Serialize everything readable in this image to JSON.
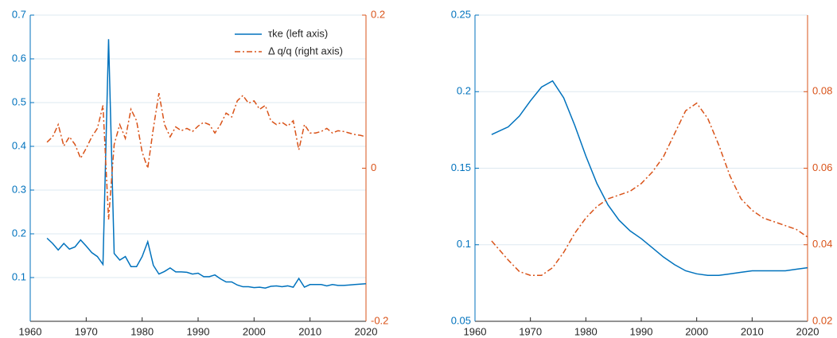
{
  "chart_data": [
    {
      "type": "line",
      "x": [
        1963,
        1964,
        1965,
        1966,
        1967,
        1968,
        1969,
        1970,
        1971,
        1972,
        1973,
        1974,
        1975,
        1976,
        1977,
        1978,
        1979,
        1980,
        1981,
        1982,
        1983,
        1984,
        1985,
        1986,
        1987,
        1988,
        1989,
        1990,
        1991,
        1992,
        1993,
        1994,
        1995,
        1996,
        1997,
        1998,
        1999,
        2000,
        2001,
        2002,
        2003,
        2004,
        2005,
        2006,
        2007,
        2008,
        2009,
        2010,
        2011,
        2012,
        2013,
        2014,
        2015,
        2016,
        2017,
        2018,
        2019,
        2020
      ],
      "series": [
        {
          "name": "τke (left axis)",
          "color": "#0072BD",
          "dash": "solid",
          "values": [
            0.19,
            0.178,
            0.163,
            0.178,
            0.165,
            0.17,
            0.186,
            0.172,
            0.157,
            0.148,
            0.13,
            0.645,
            0.155,
            0.14,
            0.148,
            0.125,
            0.125,
            0.148,
            0.182,
            0.128,
            0.108,
            0.114,
            0.122,
            0.113,
            0.113,
            0.112,
            0.108,
            0.11,
            0.102,
            0.102,
            0.106,
            0.097,
            0.09,
            0.09,
            0.083,
            0.079,
            0.079,
            0.077,
            0.078,
            0.076,
            0.08,
            0.081,
            0.079,
            0.081,
            0.078,
            0.098,
            0.078,
            0.084,
            0.084,
            0.084,
            0.081,
            0.084,
            0.082,
            0.082,
            0.083,
            0.084,
            0.085,
            0.086
          ]
        },
        {
          "name": "Δ q/q (right axis)",
          "color": "#D95319",
          "dash": "dashdot",
          "axis": "y2",
          "values": [
            0.034,
            0.041,
            0.057,
            0.029,
            0.041,
            0.031,
            0.013,
            0.026,
            0.041,
            0.052,
            0.082,
            -0.067,
            0.031,
            0.057,
            0.039,
            0.077,
            0.062,
            0.021,
            0,
            0.052,
            0.098,
            0.057,
            0.041,
            0.054,
            0.049,
            0.052,
            0.048,
            0.055,
            0.06,
            0.057,
            0.046,
            0.057,
            0.072,
            0.067,
            0.088,
            0.095,
            0.085,
            0.088,
            0.077,
            0.082,
            0.062,
            0.057,
            0.06,
            0.055,
            0.062,
            0.024,
            0.057,
            0.046,
            0.046,
            0.048,
            0.052,
            0.046,
            0.049,
            0.048,
            0.046,
            0.044,
            0.043,
            0.041
          ]
        }
      ],
      "xlim": [
        1960,
        2020
      ],
      "xticks": [
        1960,
        1970,
        1980,
        1990,
        2000,
        2010,
        2020
      ],
      "ylim": [
        0,
        0.7
      ],
      "yticks": [
        0.1,
        0.2,
        0.3,
        0.4,
        0.5,
        0.6,
        0.7
      ],
      "y2lim": [
        -0.2,
        0.2
      ],
      "y2ticks": [
        -0.2,
        0,
        0.2
      ],
      "grid": true,
      "legend": "upper-right"
    },
    {
      "type": "line",
      "x": [
        1963,
        1966,
        1968,
        1970,
        1972,
        1974,
        1976,
        1978,
        1980,
        1982,
        1984,
        1986,
        1988,
        1990,
        1992,
        1994,
        1996,
        1998,
        2000,
        2002,
        2004,
        2006,
        2008,
        2010,
        2012,
        2014,
        2016,
        2018,
        2020
      ],
      "series": [
        {
          "color": "#0072BD",
          "dash": "solid",
          "values": [
            0.172,
            0.177,
            0.184,
            0.194,
            0.203,
            0.207,
            0.196,
            0.178,
            0.158,
            0.14,
            0.126,
            0.116,
            0.109,
            0.104,
            0.098,
            0.092,
            0.087,
            0.083,
            0.081,
            0.08,
            0.08,
            0.081,
            0.082,
            0.083,
            0.083,
            0.083,
            0.083,
            0.084,
            0.085
          ]
        },
        {
          "color": "#D95319",
          "dash": "dashdot",
          "axis": "y2",
          "values": [
            0.041,
            0.036,
            0.033,
            0.032,
            0.032,
            0.034,
            0.038,
            0.043,
            0.047,
            0.05,
            0.052,
            0.053,
            0.054,
            0.056,
            0.059,
            0.063,
            0.069,
            0.075,
            0.077,
            0.073,
            0.066,
            0.058,
            0.052,
            0.049,
            0.047,
            0.046,
            0.045,
            0.044,
            0.042
          ]
        }
      ],
      "xlim": [
        1960,
        2020
      ],
      "xticks": [
        1960,
        1970,
        1980,
        1990,
        2000,
        2010,
        2020
      ],
      "ylim": [
        0.05,
        0.25
      ],
      "yticks": [
        0.05,
        0.1,
        0.15,
        0.2,
        0.25
      ],
      "y2lim": [
        0.02,
        0.1
      ],
      "y2ticks": [
        0.02,
        0.04,
        0.06,
        0.08
      ],
      "grid": true
    }
  ]
}
